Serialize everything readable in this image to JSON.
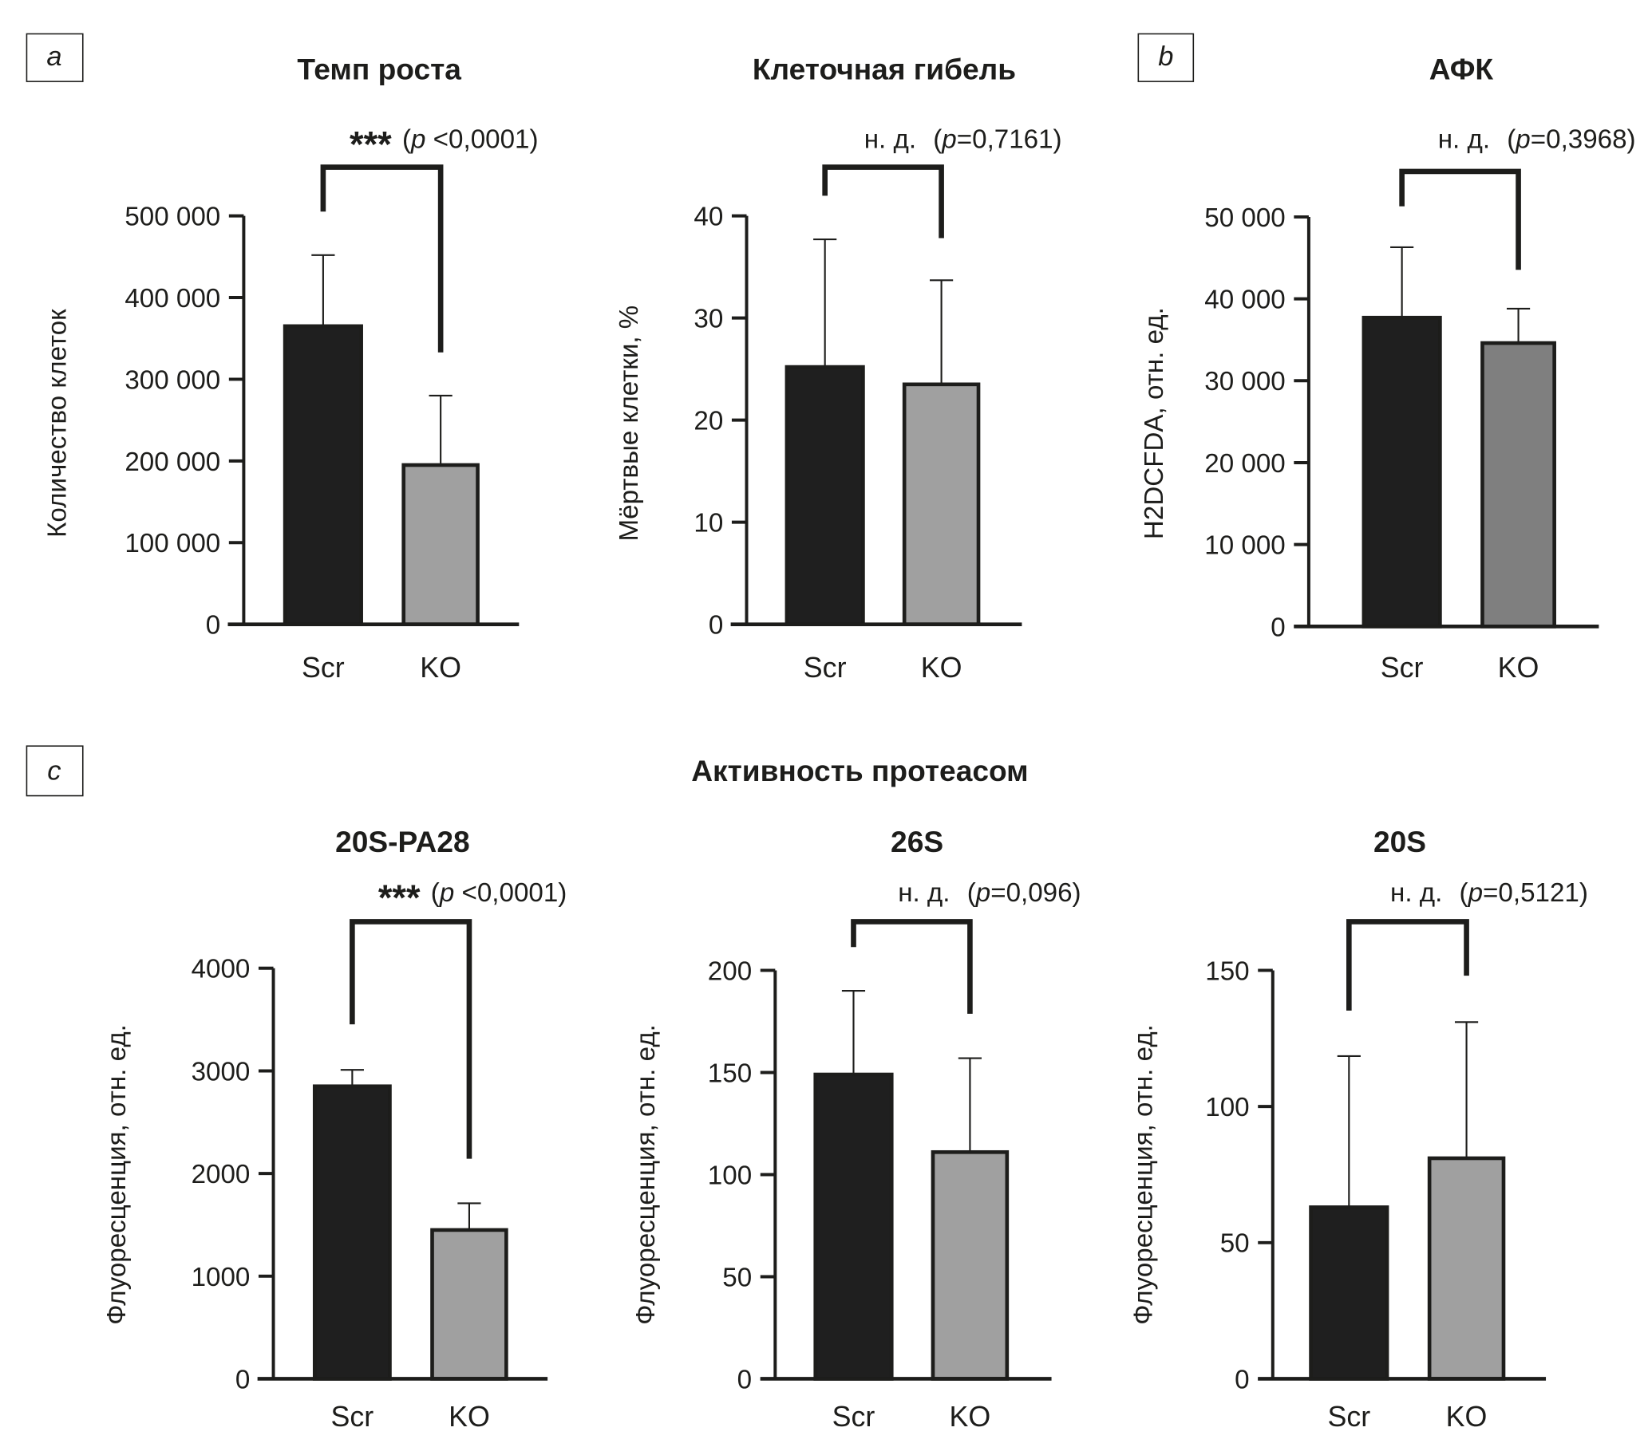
{
  "panel_labels": [
    "a",
    "b",
    "c"
  ],
  "section_title": "Активность протеасом",
  "colors": {
    "scr": "#1f1f1f",
    "ko_light": "#a0a0a0",
    "ko_dark": "#7f7f7f",
    "ink": "#1d1d1b"
  },
  "chart_data": [
    {
      "type": "bar",
      "title": "Темп роста",
      "ylabel": "Количество клеток",
      "categories": [
        "Scr",
        "KO"
      ],
      "values": [
        365000,
        195000
      ],
      "error_upper": [
        452000,
        280000
      ],
      "ylim": [
        0,
        500000
      ],
      "ticks": [
        {
          "v": 0,
          "label": "0"
        },
        {
          "v": 100000,
          "label": "100 000"
        },
        {
          "v": 200000,
          "label": "200 000"
        },
        {
          "v": 300000,
          "label": "300 000"
        },
        {
          "v": 400000,
          "label": "400 000"
        },
        {
          "v": 500000,
          "label": "500 000"
        }
      ],
      "annotation": {
        "sig": "***",
        "open": "(",
        "p": "p",
        "value": " <0,0001)"
      },
      "ko_color": "#a0a0a0"
    },
    {
      "type": "bar",
      "title": "Клеточная гибель",
      "ylabel": "Мёртвые клетки, %",
      "categories": [
        "Scr",
        "KO"
      ],
      "values": [
        25.2,
        23.5
      ],
      "error_upper": [
        37.7,
        33.7
      ],
      "ylim": [
        0,
        40
      ],
      "ticks": [
        {
          "v": 0,
          "label": "0"
        },
        {
          "v": 10,
          "label": "10"
        },
        {
          "v": 20,
          "label": "20"
        },
        {
          "v": 30,
          "label": "30"
        },
        {
          "v": 40,
          "label": "40"
        }
      ],
      "annotation": {
        "sig": "н. д.",
        "open": "(",
        "p": "p",
        "value": "=0,7161)"
      },
      "ko_color": "#a0a0a0"
    },
    {
      "type": "bar",
      "title": "АФК",
      "ylabel": "H2DCFDA, отн. ед.",
      "categories": [
        "Scr",
        "KO"
      ],
      "values": [
        37700,
        34600
      ],
      "error_upper": [
        46300,
        38800
      ],
      "ylim": [
        0,
        50000
      ],
      "ticks": [
        {
          "v": 0,
          "label": "0"
        },
        {
          "v": 10000,
          "label": "10 000"
        },
        {
          "v": 20000,
          "label": "20 000"
        },
        {
          "v": 30000,
          "label": "30 000"
        },
        {
          "v": 40000,
          "label": "40 000"
        },
        {
          "v": 50000,
          "label": "50 000"
        }
      ],
      "annotation": {
        "sig": "н. д.",
        "open": "(",
        "p": "p",
        "value": "=0,3968)"
      },
      "ko_color": "#7f7f7f"
    },
    {
      "type": "bar",
      "title": "20S-PA28",
      "ylabel": "Флуоресценция, отн. ед.",
      "categories": [
        "Scr",
        "KO"
      ],
      "values": [
        2850,
        1450
      ],
      "error_upper": [
        3010,
        1710
      ],
      "ylim": [
        0,
        4000
      ],
      "ticks": [
        {
          "v": 0,
          "label": "0"
        },
        {
          "v": 1000,
          "label": "1000"
        },
        {
          "v": 2000,
          "label": "2000"
        },
        {
          "v": 3000,
          "label": "3000"
        },
        {
          "v": 4000,
          "label": "4000"
        }
      ],
      "annotation": {
        "sig": "***",
        "open": "(",
        "p": "p",
        "value": " <0,0001)"
      },
      "ko_color": "#a0a0a0"
    },
    {
      "type": "bar",
      "title": "26S",
      "ylabel": "Флуоресценция, отн. ед.",
      "categories": [
        "Scr",
        "KO"
      ],
      "values": [
        149,
        111
      ],
      "error_upper": [
        190,
        157
      ],
      "ylim": [
        0,
        200
      ],
      "ticks": [
        {
          "v": 0,
          "label": "0"
        },
        {
          "v": 50,
          "label": "50"
        },
        {
          "v": 100,
          "label": "100"
        },
        {
          "v": 150,
          "label": "150"
        },
        {
          "v": 200,
          "label": "200"
        }
      ],
      "annotation": {
        "sig": "н. д.",
        "open": "(",
        "p": "p",
        "value": "=0,096)"
      },
      "ko_color": "#a0a0a0"
    },
    {
      "type": "bar",
      "title": "20S",
      "ylabel": "Флуоресценция, отн. ед.",
      "categories": [
        "Scr",
        "KO"
      ],
      "values": [
        63,
        81
      ],
      "error_upper": [
        118.5,
        131
      ],
      "ylim": [
        0,
        150
      ],
      "ticks": [
        {
          "v": 0,
          "label": "0"
        },
        {
          "v": 50,
          "label": "50"
        },
        {
          "v": 100,
          "label": "100"
        },
        {
          "v": 150,
          "label": "150"
        }
      ],
      "annotation": {
        "sig": "н. д.",
        "open": "(",
        "p": "p",
        "value": "=0,5121)"
      },
      "ko_color": "#a0a0a0"
    }
  ]
}
